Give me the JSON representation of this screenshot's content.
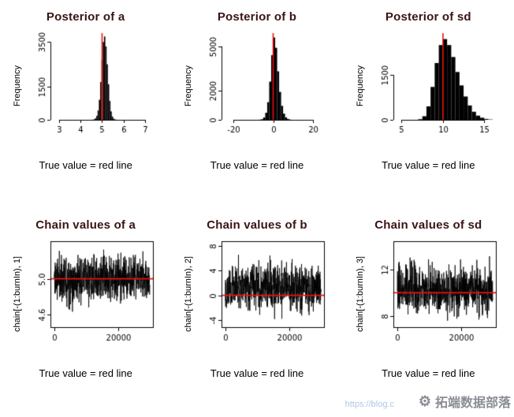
{
  "page": {
    "background": "#ffffff"
  },
  "colors": {
    "bar": "#000000",
    "series": "#000000",
    "red": "#ee1111",
    "axis": "#000000",
    "title": "#3b1414"
  },
  "watermark": {
    "text": "拓端数据部落",
    "logo": "gear-logo",
    "url_fragment": "https://blog.c"
  },
  "chart_data": [
    {
      "type": "histogram",
      "title": "Posterior of a",
      "ylabel": "Frequency",
      "caption": "True value = red line",
      "xlim": [
        2.6,
        7.4
      ],
      "ylim": [
        0,
        3900
      ],
      "xtick_vals": [
        3,
        4,
        5,
        6,
        7
      ],
      "xtick_labels": [
        "3",
        "4",
        "5",
        "6",
        "7"
      ],
      "ytick_vals": [
        0,
        1500,
        3500
      ],
      "ytick_labels": [
        "0",
        "1500",
        "3500"
      ],
      "bin_start": 4.55,
      "bin_width": 0.06,
      "bin_heights": [
        8,
        25,
        70,
        180,
        420,
        900,
        1700,
        2700,
        3500,
        3750,
        3300,
        2500,
        1600,
        850,
        380,
        150,
        55,
        18,
        6
      ],
      "red_line_x": 5.0
    },
    {
      "type": "histogram",
      "title": "Posterior of b",
      "ylabel": "Frequency",
      "caption": "True value = red line",
      "xlim": [
        -26,
        26
      ],
      "ylim": [
        0,
        5900
      ],
      "xtick_vals": [
        -20,
        0,
        20
      ],
      "xtick_labels": [
        "-20",
        "0",
        "20"
      ],
      "ytick_vals": [
        0,
        2000,
        5000
      ],
      "ytick_labels": [
        "0",
        "2000",
        "5000"
      ],
      "bin_start": -7,
      "bin_width": 1,
      "bin_heights": [
        12,
        45,
        160,
        480,
        1200,
        2600,
        4400,
        5600,
        4900,
        3300,
        1900,
        950,
        420,
        170,
        60,
        20
      ],
      "red_line_x": 0
    },
    {
      "type": "histogram",
      "title": "Posterior of sd",
      "ylabel": "Frequency",
      "caption": "True value = red line",
      "xlim": [
        4,
        16.5
      ],
      "ylim": [
        0,
        2900
      ],
      "xtick_vals": [
        5,
        10,
        15
      ],
      "xtick_labels": [
        "5",
        "10",
        "15"
      ],
      "ytick_vals": [
        0,
        1500
      ],
      "ytick_labels": [
        "0",
        "1500"
      ],
      "bin_start": 7,
      "bin_width": 0.5,
      "bin_heights": [
        20,
        120,
        450,
        1100,
        1900,
        2500,
        2700,
        2500,
        2100,
        1600,
        1150,
        780,
        480,
        270,
        140,
        70,
        30,
        12
      ],
      "red_line_x": 10
    },
    {
      "type": "trace",
      "title": "Chain values of a",
      "ylabel": "chain[-(1:burnIn), 1]",
      "caption": "True value = red line",
      "xlim": [
        -1200,
        31200
      ],
      "ylim": [
        4.45,
        5.42
      ],
      "xtick_vals": [
        0,
        20000
      ],
      "xtick_labels": [
        "0",
        "20000"
      ],
      "ytick_vals": [
        4.6,
        5.0
      ],
      "ytick_labels": [
        "4.6",
        "5.0"
      ],
      "x_start": 0,
      "x_end": 30000,
      "mean": 5.0,
      "sd": 0.125,
      "n_points": 700,
      "seed": 11,
      "red_line_y": 5.0
    },
    {
      "type": "trace",
      "title": "Chain values of b",
      "ylabel": "chain[-(1:burnIn), 2]",
      "caption": "True value = red line",
      "xlim": [
        -1200,
        31200
      ],
      "ylim": [
        -5.3,
        8.8
      ],
      "xtick_vals": [
        -4,
        0,
        4,
        8
      ],
      "xtick_labels": [
        "-4",
        "0",
        "4",
        "8"
      ],
      "ytick_vals": [
        -4,
        0,
        4,
        8
      ],
      "ytick_labels": [
        "-4",
        "0",
        "4",
        "8"
      ],
      "xaxis_tick_vals": [
        0,
        20000
      ],
      "xaxis_tick_labels": [
        "0",
        "20000"
      ],
      "x_start": 0,
      "x_end": 30000,
      "mean": 1.3,
      "sd": 1.8,
      "n_points": 700,
      "seed": 22,
      "red_line_y": 0
    },
    {
      "type": "trace",
      "title": "Chain values of sd",
      "ylabel": "chain[-(1:burnIn), 3]",
      "caption": "True value = red line",
      "xlim": [
        -1200,
        31200
      ],
      "ylim": [
        7.0,
        14.4
      ],
      "xtick_vals": [
        0,
        20000
      ],
      "xtick_labels": [
        "0",
        "20000"
      ],
      "ytick_vals": [
        8,
        12
      ],
      "ytick_labels": [
        "8",
        "12"
      ],
      "x_start": 0,
      "x_end": 30000,
      "mean": 10.3,
      "sd": 1.0,
      "n_points": 700,
      "seed": 33,
      "red_line_y": 10
    }
  ]
}
